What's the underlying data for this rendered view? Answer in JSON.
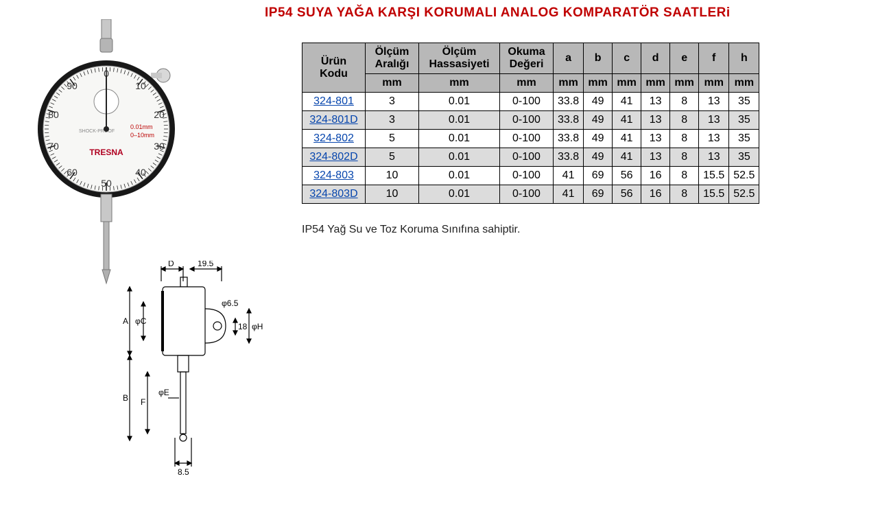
{
  "title": "IP54 SUYA YAĞA KARŞI KORUMALI ANALOG KOMPARATÖR SAATLERi",
  "note": "IP54 Yağ Su ve Toz Koruma Sınıfına sahiptir.",
  "table": {
    "headers": {
      "code": "Ürün Kodu",
      "range": "Ölçüm Aralığı",
      "precision": "Ölçüm Hassasiyeti",
      "reading": "Okuma Değeri",
      "a": "a",
      "b": "b",
      "c": "c",
      "d": "d",
      "e": "e",
      "f": "f",
      "h": "h",
      "unit": "mm"
    },
    "rows": [
      {
        "code": "324-801",
        "range": "3",
        "precision": "0.01",
        "reading": "0-100",
        "a": "33.8",
        "b": "49",
        "c": "41",
        "d": "13",
        "e": "8",
        "f": "13",
        "h": "35",
        "alt": false
      },
      {
        "code": "324-801D",
        "range": "3",
        "precision": "0.01",
        "reading": "0-100",
        "a": "33.8",
        "b": "49",
        "c": "41",
        "d": "13",
        "e": "8",
        "f": "13",
        "h": "35",
        "alt": true
      },
      {
        "code": "324-802",
        "range": "5",
        "precision": "0.01",
        "reading": "0-100",
        "a": "33.8",
        "b": "49",
        "c": "41",
        "d": "13",
        "e": "8",
        "f": "13",
        "h": "35",
        "alt": false
      },
      {
        "code": "324-802D",
        "range": "5",
        "precision": "0.01",
        "reading": "0-100",
        "a": "33.8",
        "b": "49",
        "c": "41",
        "d": "13",
        "e": "8",
        "f": "13",
        "h": "35",
        "alt": true
      },
      {
        "code": "324-803",
        "range": "10",
        "precision": "0.01",
        "reading": "0-100",
        "a": "41",
        "b": "69",
        "c": "56",
        "d": "16",
        "e": "8",
        "f": "15.5",
        "h": "52.5",
        "alt": false
      },
      {
        "code": "324-803D",
        "range": "10",
        "precision": "0.01",
        "reading": "0-100",
        "a": "41",
        "b": "69",
        "c": "56",
        "d": "16",
        "e": "8",
        "f": "15.5",
        "h": "52.5",
        "alt": true
      }
    ]
  },
  "photo": {
    "dial_numbers": [
      "0",
      "10",
      "20",
      "30",
      "40",
      "50",
      "60",
      "70",
      "80",
      "90"
    ],
    "brand": "TRESNA",
    "label1": "SHOCK-PROOF",
    "label2": "0.01mm",
    "label3": "0–10mm"
  },
  "drawing": {
    "labels": {
      "D": "D",
      "A": "A",
      "B": "B",
      "F": "F",
      "phiC": "φC",
      "phiE": "φE",
      "phiH": "φH",
      "phi65": "φ6.5",
      "n195": "19.5",
      "n18": "18",
      "n85": "8.5"
    }
  },
  "colors": {
    "title": "#c00000",
    "header_bg": "#b8b8b8",
    "row_alt": "#dcdcdc",
    "link": "#0645ad",
    "text": "#222222",
    "border": "#000000",
    "bg": "#ffffff"
  }
}
